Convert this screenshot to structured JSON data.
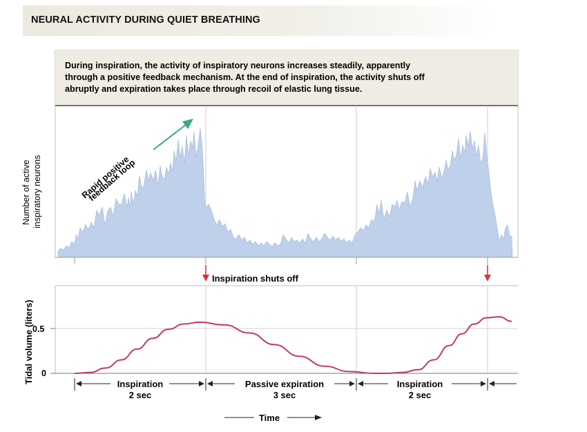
{
  "title": "NEURAL ACTIVITY DURING QUIET BREATHING",
  "caption": {
    "line1": "During inspiration, the activity of inspiratory neurons increases steadily, apparently",
    "line2": "through a positive feedback mechanism. At the end of inspiration, the activity shuts off",
    "line3": "abruptly and expiration takes place through recoil of elastic lung tissue."
  },
  "top_panel": {
    "ylabel_line1": "Number of active",
    "ylabel_line2": "inspiratory neurons",
    "annotation_line1": "Rapid positive",
    "annotation_line2": "feedback loop"
  },
  "shutoff_label": "Inspiration shuts off",
  "chart_data": {
    "type": "line",
    "title": "Tidal volume",
    "ylabel": "Tidal volume (liters)",
    "xlabel": "Time",
    "yticks": [
      "0.5",
      "0"
    ],
    "x_unit": "sec",
    "ylim": [
      0,
      0.95
    ],
    "xlim": [
      0,
      7.1
    ],
    "series": [
      {
        "name": "Tidal volume",
        "color": "#c23a5a",
        "x": [
          0,
          0.25,
          0.5,
          0.75,
          1.0,
          1.25,
          1.5,
          1.75,
          2.0,
          2.4,
          2.8,
          3.2,
          3.6,
          4.0,
          4.4,
          4.8,
          5.0,
          5.25,
          5.5,
          5.75,
          6.0,
          6.2,
          6.4,
          6.6,
          6.8,
          7.0
        ],
        "y": [
          0,
          0.01,
          0.06,
          0.15,
          0.27,
          0.39,
          0.49,
          0.55,
          0.57,
          0.54,
          0.45,
          0.32,
          0.19,
          0.08,
          0.02,
          0.0,
          0.0,
          0.01,
          0.04,
          0.15,
          0.31,
          0.44,
          0.55,
          0.62,
          0.63,
          0.58
        ]
      }
    ],
    "phases": [
      {
        "name": "Inspiration",
        "duration": "2 sec"
      },
      {
        "name": "Passive expiration",
        "duration": "3 sec"
      },
      {
        "name": "Inspiration",
        "duration": "2 sec"
      }
    ]
  },
  "colors": {
    "activity_fill": "#bed0ea",
    "tidal_line": "#c23a5a",
    "arrow_red": "#d6343b",
    "feedback_arrow": "#3aa886",
    "caption_bg": "#efece4"
  }
}
